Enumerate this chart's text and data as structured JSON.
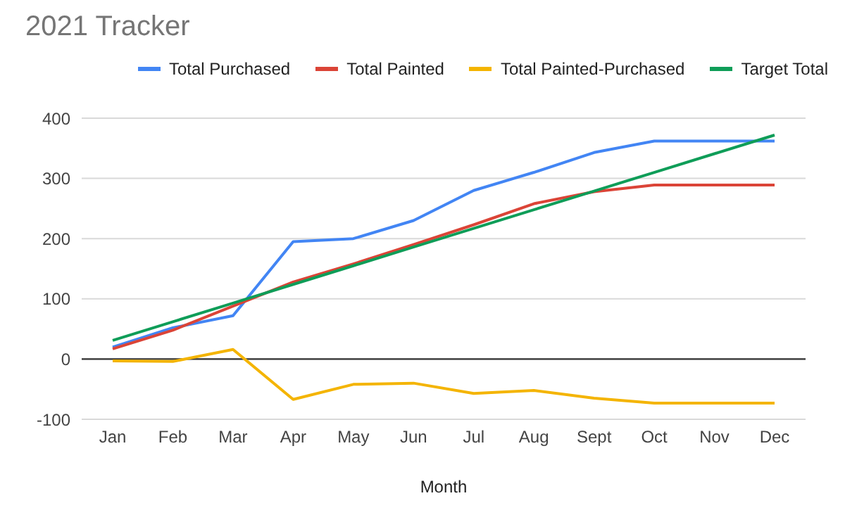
{
  "chart_data": {
    "type": "line",
    "title": "2021 Tracker",
    "xlabel": "Month",
    "categories": [
      "Jan",
      "Feb",
      "Mar",
      "Apr",
      "May",
      "Jun",
      "Jul",
      "Aug",
      "Sept",
      "Oct",
      "Nov",
      "Dec"
    ],
    "series": [
      {
        "name": "Total Purchased",
        "color": "#4285f4",
        "values": [
          20,
          52,
          72,
          195,
          200,
          230,
          280,
          310,
          343,
          362,
          362,
          362
        ]
      },
      {
        "name": "Total Painted",
        "color": "#db4437",
        "values": [
          17,
          48,
          88,
          128,
          158,
          190,
          223,
          258,
          278,
          289,
          289,
          289
        ]
      },
      {
        "name": "Total Painted-Purchased",
        "color": "#f4b400",
        "values": [
          -3,
          -4,
          16,
          -67,
          -42,
          -40,
          -57,
          -52,
          -65,
          -73,
          -73,
          -73
        ]
      },
      {
        "name": "Target Total",
        "color": "#0f9d58",
        "values": [
          31,
          62,
          93,
          124,
          155,
          186,
          217,
          248,
          279,
          310,
          341,
          372
        ]
      }
    ],
    "ylim": [
      -100,
      400
    ],
    "yticks": [
      -100,
      0,
      100,
      200,
      300,
      400
    ],
    "grid": "y",
    "legend": "top",
    "marker": "none",
    "line_style": "solid",
    "ref_lines": [
      {
        "axis": "y",
        "value": 0,
        "color": "#333333"
      }
    ]
  }
}
